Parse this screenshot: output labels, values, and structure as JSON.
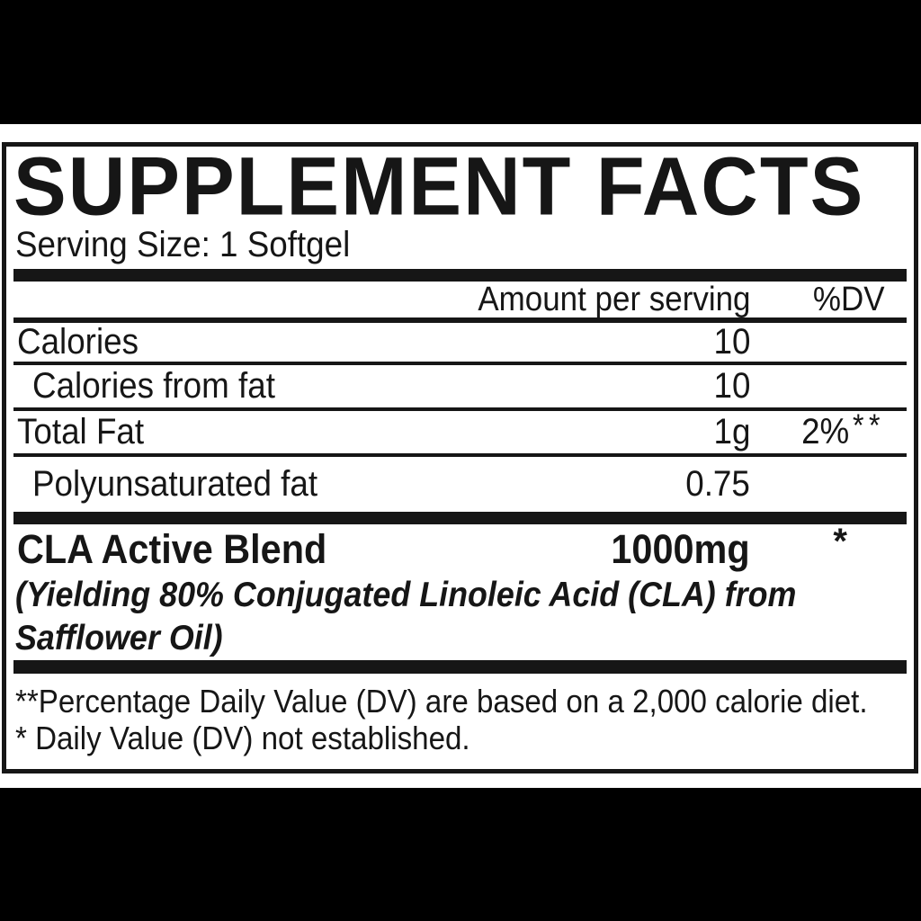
{
  "panel": {
    "title": "SUPPLEMENT FACTS",
    "serving_size": "Serving Size: 1 Softgel",
    "columns": {
      "amount": "Amount per serving",
      "dv": "%DV"
    },
    "rows": [
      {
        "name": "Calories",
        "amount": "10",
        "dv": "",
        "dv_stars": ""
      },
      {
        "name": "Calories from fat",
        "amount": "10",
        "dv": "",
        "dv_stars": ""
      },
      {
        "name": "Total Fat",
        "amount": "1g",
        "dv": "2%",
        "dv_stars": "**"
      },
      {
        "name": "Polyunsaturated fat",
        "amount": "0.75",
        "dv": "",
        "dv_stars": ""
      }
    ],
    "blend": {
      "name": "CLA Active Blend",
      "amount": "1000mg",
      "dv_star": "*",
      "description_line1": "(Yielding 80% Conjugated Linoleic Acid (CLA) from",
      "description_line2": "Safflower Oil)"
    },
    "footnotes": [
      "**Percentage Daily Value (DV) are based on a 2,000 calorie diet.",
      "* Daily Value (DV) not established."
    ],
    "colors": {
      "ink": "#161616",
      "paper": "#ffffff",
      "background": "#000000"
    }
  }
}
